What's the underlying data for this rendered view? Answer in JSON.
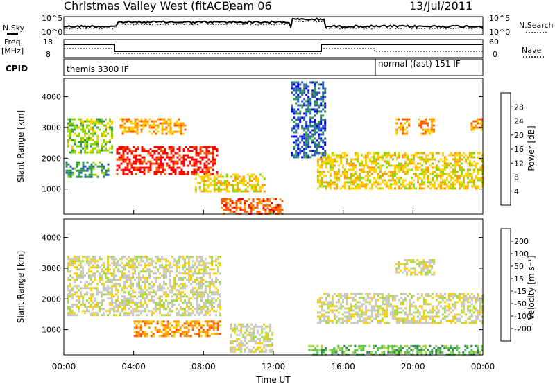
{
  "header": {
    "title": "Christmas Valley West (fitACF)",
    "beam": "Beam 06",
    "date": "13/Jul/2011"
  },
  "panels": {
    "nsky": {
      "label": "N.Sky",
      "right_label": "N.Search",
      "ticks_left": [
        "10^5",
        "10^0"
      ],
      "ticks_right": [
        "10^5",
        "10^0"
      ]
    },
    "freq": {
      "label_line1": "Freq.",
      "label_line2": "[MHz]",
      "right_label": "Nave",
      "ticks_left": [
        "18",
        "8"
      ],
      "ticks_right": [
        "60",
        "0"
      ]
    },
    "cpid": {
      "label": "CPID",
      "segments": [
        "themis 3300 IF",
        "normal (fast) 151 IF"
      ]
    }
  },
  "power_colorbar": {
    "label": "Power [dB]",
    "ticks": [
      "28",
      "24",
      "20",
      "16",
      "12",
      "8",
      "4"
    ],
    "colors": [
      "#ff0000",
      "#ff5a00",
      "#ff9a00",
      "#ffd200",
      "#8ed400",
      "#2e9c4c",
      "#2a5db0",
      "#0000ff"
    ]
  },
  "velocity_colorbar": {
    "label": "Velocity [m s⁻¹]",
    "ticks": [
      "200",
      "100",
      "50",
      "15",
      "-15",
      "-50",
      "-100",
      "-200"
    ],
    "colors": [
      "#2a3fb4",
      "#2e8a5a",
      "#5cc24a",
      "#a8d844",
      "#c8c8c8",
      "#ffd000",
      "#ff9500",
      "#ff5500",
      "#ff0000"
    ]
  },
  "chart_data": [
    {
      "type": "heatmap",
      "name": "power",
      "ylabel": "Slant Range [km]",
      "ylim": [
        180,
        4600
      ],
      "yticks": [
        1000,
        2000,
        3000,
        4000
      ],
      "xlim": [
        0,
        24
      ],
      "features": [
        {
          "t0": 0.2,
          "t1": 2.8,
          "r0": 2200,
          "r1": 3300,
          "level": 4
        },
        {
          "t0": 3.0,
          "t1": 8.8,
          "r0": 1500,
          "r1": 2400,
          "level": 0
        },
        {
          "t0": 3.2,
          "t1": 7.0,
          "r0": 2800,
          "r1": 3300,
          "level": 2
        },
        {
          "t0": 0.1,
          "t1": 2.5,
          "r0": 1400,
          "r1": 1900,
          "level": 5
        },
        {
          "t0": 7.5,
          "t1": 11.5,
          "r0": 900,
          "r1": 1500,
          "level": 3
        },
        {
          "t0": 9.0,
          "t1": 12.5,
          "r0": 180,
          "r1": 700,
          "level": 1
        },
        {
          "t0": 14.5,
          "t1": 24.0,
          "r0": 1000,
          "r1": 2200,
          "level": 3
        },
        {
          "t0": 19.0,
          "t1": 19.8,
          "r0": 2800,
          "r1": 3300,
          "level": 2
        },
        {
          "t0": 20.3,
          "t1": 21.2,
          "r0": 2800,
          "r1": 3300,
          "level": 2
        },
        {
          "t0": 23.3,
          "t1": 24.0,
          "r0": 2900,
          "r1": 3300,
          "level": 2
        },
        {
          "t0": 13.0,
          "t1": 15.0,
          "r0": 2000,
          "r1": 4500,
          "level": 6
        }
      ]
    },
    {
      "type": "heatmap",
      "name": "velocity",
      "ylabel": "Slant Range [km]",
      "ylim": [
        180,
        4600
      ],
      "yticks": [
        1000,
        2000,
        3000,
        4000
      ],
      "xlim": [
        0,
        24
      ],
      "xticks": [
        "00:00",
        "04:00",
        "08:00",
        "12:00",
        "16:00",
        "20:00",
        "00:00"
      ],
      "xlabel": "Time UT",
      "features": [
        {
          "t0": 0.2,
          "t1": 9.0,
          "r0": 1500,
          "r1": 3400,
          "level": 4
        },
        {
          "t0": 4.0,
          "t1": 9.0,
          "r0": 800,
          "r1": 1300,
          "level": 6
        },
        {
          "t0": 9.5,
          "t1": 12.0,
          "r0": 300,
          "r1": 1200,
          "level": 4
        },
        {
          "t0": 14.5,
          "t1": 24.0,
          "r0": 1200,
          "r1": 2200,
          "level": 4
        },
        {
          "t0": 14.0,
          "t1": 24.0,
          "r0": 180,
          "r1": 500,
          "level": 2
        },
        {
          "t0": 19.0,
          "t1": 21.2,
          "r0": 2800,
          "r1": 3300,
          "level": 4
        }
      ]
    }
  ]
}
